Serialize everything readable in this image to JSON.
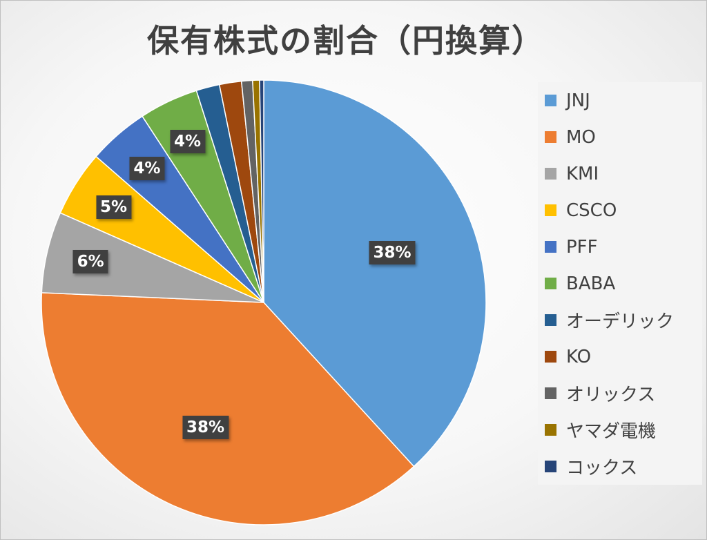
{
  "chart_data": {
    "type": "pie",
    "title": "保有株式の割合（円換算）",
    "slices": [
      {
        "name": "JNJ",
        "value": 38.2,
        "color": "#5B9BD5",
        "label": "38%"
      },
      {
        "name": "MO",
        "value": 37.5,
        "color": "#ED7D31",
        "label": "38%"
      },
      {
        "name": "KMI",
        "value": 5.9,
        "color": "#A5A5A5",
        "label": "6%"
      },
      {
        "name": "CSCO",
        "value": 4.8,
        "color": "#FFC000",
        "label": "5%"
      },
      {
        "name": "PFF",
        "value": 4.4,
        "color": "#4472C4",
        "label": "4%"
      },
      {
        "name": "BABA",
        "value": 4.3,
        "color": "#70AD47",
        "label": "4%"
      },
      {
        "name": "オーデリック",
        "value": 1.7,
        "color": "#255E91",
        "label": ""
      },
      {
        "name": "KO",
        "value": 1.6,
        "color": "#9E480E",
        "label": ""
      },
      {
        "name": "オリックス",
        "value": 0.8,
        "color": "#636363",
        "label": ""
      },
      {
        "name": "ヤマダ電機",
        "value": 0.5,
        "color": "#997300",
        "label": ""
      },
      {
        "name": "コックス",
        "value": 0.3,
        "color": "#264478",
        "label": ""
      }
    ],
    "start_angle": "12 o'clock",
    "direction": "clockwise",
    "legend_position": "right"
  }
}
